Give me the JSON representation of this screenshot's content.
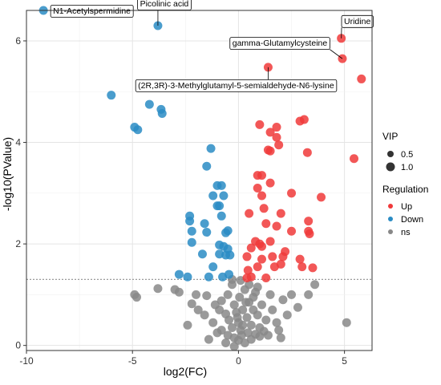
{
  "chart_data": {
    "type": "scatter",
    "xlabel": "log2(FC)",
    "ylabel": "-log10(PValue)",
    "xlim": [
      -10,
      6.3
    ],
    "ylim": [
      -0.1,
      6.6
    ],
    "xticks": [
      -10,
      -5,
      0,
      5
    ],
    "yticks": [
      0,
      2,
      4,
      6
    ],
    "grid": true,
    "threshold_y": 1.3,
    "colors": {
      "Up": "#f0393a",
      "Down": "#2a8cc4",
      "ns": "#888888"
    },
    "legend": {
      "position": "right",
      "vip_title": "VIP",
      "vip_items": [
        {
          "label": "0.5",
          "r": 4
        },
        {
          "label": "1.0",
          "r": 5.5
        }
      ],
      "regulation_title": "Regulation",
      "regulation_items": [
        "Up",
        "Down",
        "ns"
      ]
    },
    "series": [
      {
        "name": "Up",
        "points": [
          [
            5.8,
            5.25
          ],
          [
            4.85,
            6.05
          ],
          [
            4.9,
            5.65
          ],
          [
            1.4,
            5.48
          ],
          [
            5.45,
            3.68
          ],
          [
            1.0,
            4.35
          ],
          [
            1.5,
            4.2
          ],
          [
            1.8,
            4.3
          ],
          [
            1.8,
            4.1
          ],
          [
            1.4,
            3.85
          ],
          [
            1.5,
            3.83
          ],
          [
            1.9,
            3.95
          ],
          [
            2.9,
            4.42
          ],
          [
            3.1,
            4.45
          ],
          [
            3.25,
            3.8
          ],
          [
            0.9,
            3.35
          ],
          [
            1.1,
            3.35
          ],
          [
            0.9,
            3.1
          ],
          [
            1.5,
            3.2
          ],
          [
            2.5,
            3.0
          ],
          [
            1.1,
            2.95
          ],
          [
            3.9,
            2.92
          ],
          [
            1.2,
            2.7
          ],
          [
            2.0,
            2.6
          ],
          [
            0.5,
            2.6
          ],
          [
            1.3,
            2.4
          ],
          [
            1.8,
            2.35
          ],
          [
            3.3,
            2.45
          ],
          [
            3.35,
            2.2
          ],
          [
            3.3,
            2.25
          ],
          [
            2.5,
            2.25
          ],
          [
            0.8,
            2.05
          ],
          [
            1.0,
            2.0
          ],
          [
            1.5,
            2.05
          ],
          [
            1.1,
            1.95
          ],
          [
            0.6,
            1.92
          ],
          [
            1.6,
            1.75
          ],
          [
            2.2,
            1.85
          ],
          [
            2.0,
            1.6
          ],
          [
            2.1,
            1.75
          ],
          [
            2.9,
            1.7
          ],
          [
            0.4,
            1.75
          ],
          [
            1.1,
            1.7
          ],
          [
            0.9,
            1.55
          ],
          [
            1.7,
            1.55
          ],
          [
            3.0,
            1.55
          ],
          [
            3.5,
            1.53
          ],
          [
            0.45,
            1.48
          ],
          [
            0.4,
            1.33
          ],
          [
            0.6,
            1.35
          ],
          [
            1.3,
            1.33
          ]
        ]
      },
      {
        "name": "Down",
        "points": [
          [
            -9.2,
            6.6
          ],
          [
            -3.8,
            6.3
          ],
          [
            -6.0,
            4.93
          ],
          [
            -4.2,
            4.75
          ],
          [
            -3.65,
            4.65
          ],
          [
            -3.6,
            4.57
          ],
          [
            -4.9,
            4.3
          ],
          [
            -4.75,
            4.25
          ],
          [
            -1.3,
            3.88
          ],
          [
            -1.5,
            3.53
          ],
          [
            -1.0,
            3.15
          ],
          [
            -0.8,
            3.15
          ],
          [
            -1.2,
            2.95
          ],
          [
            -0.7,
            2.95
          ],
          [
            -1.0,
            2.75
          ],
          [
            -2.3,
            2.55
          ],
          [
            -2.3,
            2.45
          ],
          [
            -0.8,
            2.55
          ],
          [
            -0.9,
            2.75
          ],
          [
            -1.6,
            2.4
          ],
          [
            -2.2,
            2.25
          ],
          [
            -1.5,
            2.23
          ],
          [
            -0.6,
            2.22
          ],
          [
            -0.5,
            2.26
          ],
          [
            -2.2,
            2.03
          ],
          [
            -0.9,
            1.98
          ],
          [
            -0.7,
            1.95
          ],
          [
            -0.6,
            1.78
          ],
          [
            -1.7,
            1.8
          ],
          [
            -0.9,
            1.8
          ],
          [
            -0.4,
            1.78
          ],
          [
            -1.2,
            1.55
          ],
          [
            -0.5,
            1.9
          ],
          [
            -2.8,
            1.4
          ],
          [
            -2.4,
            1.35
          ],
          [
            -1.4,
            1.35
          ],
          [
            -0.75,
            1.35
          ],
          [
            -0.45,
            1.4
          ]
        ]
      },
      {
        "name": "ns",
        "points": [
          [
            -4.9,
            1.0
          ],
          [
            -4.8,
            0.95
          ],
          [
            -3.8,
            1.12
          ],
          [
            -3.0,
            1.1
          ],
          [
            -2.8,
            1.05
          ],
          [
            -2.0,
            1.0
          ],
          [
            -2.2,
            0.82
          ],
          [
            -1.5,
            0.98
          ],
          [
            -1.1,
            0.8
          ],
          [
            -0.9,
            0.7
          ],
          [
            -0.8,
            0.88
          ],
          [
            -0.6,
            0.62
          ],
          [
            -0.5,
            1.0
          ],
          [
            -0.45,
            0.5
          ],
          [
            -0.3,
            1.2
          ],
          [
            -0.2,
            0.8
          ],
          [
            -0.1,
            0.65
          ],
          [
            0.0,
            0.45
          ],
          [
            0.05,
            0.95
          ],
          [
            0.1,
            0.3
          ],
          [
            0.2,
            0.7
          ],
          [
            0.3,
            1.1
          ],
          [
            0.4,
            0.55
          ],
          [
            0.5,
            0.85
          ],
          [
            0.6,
            0.4
          ],
          [
            0.7,
            0.7
          ],
          [
            0.8,
            1.05
          ],
          [
            0.9,
            0.6
          ],
          [
            1.0,
            0.35
          ],
          [
            1.1,
            0.8
          ],
          [
            1.3,
            0.5
          ],
          [
            1.5,
            1.0
          ],
          [
            1.6,
            0.7
          ],
          [
            1.8,
            0.45
          ],
          [
            2.1,
            0.9
          ],
          [
            2.3,
            0.6
          ],
          [
            2.5,
            1.0
          ],
          [
            2.8,
            0.75
          ],
          [
            3.3,
            1.0
          ],
          [
            3.6,
            1.2
          ],
          [
            5.1,
            0.45
          ],
          [
            -1.6,
            0.6
          ],
          [
            -1.9,
            0.7
          ],
          [
            -1.2,
            0.45
          ],
          [
            -0.8,
            0.3
          ],
          [
            -0.5,
            0.2
          ],
          [
            -0.3,
            0.35
          ],
          [
            -0.2,
            0.15
          ],
          [
            0.0,
            0.1
          ],
          [
            0.15,
            0.2
          ],
          [
            0.3,
            0.05
          ],
          [
            0.45,
            0.25
          ],
          [
            0.6,
            0.12
          ],
          [
            0.8,
            0.22
          ],
          [
            1.0,
            0.18
          ],
          [
            1.2,
            0.28
          ],
          [
            -0.6,
            0.05
          ],
          [
            -0.2,
            -0.02
          ],
          [
            0.2,
            0.4
          ],
          [
            -1.0,
            0.25
          ],
          [
            1.4,
            0.2
          ],
          [
            0.5,
            1.2
          ],
          [
            0.9,
            1.15
          ],
          [
            -0.3,
            1.3
          ],
          [
            0.1,
            1.28
          ],
          [
            0.7,
            0.95
          ],
          [
            1.9,
            0.3
          ],
          [
            2.0,
            0.15
          ],
          [
            -2.4,
            0.4
          ],
          [
            -1.4,
            0.12
          ],
          [
            0.35,
            0.85
          ],
          [
            -0.05,
            0.55
          ]
        ]
      }
    ],
    "annotations": [
      {
        "label": "N1-Acetylspermidine",
        "x": -9.2,
        "y": 6.6,
        "dx": 12,
        "dy": 0,
        "anchor": "start"
      },
      {
        "label": "Picolinic acid",
        "x": -3.8,
        "y": 6.3,
        "dx": 8,
        "dy": -28,
        "anchor": "middle"
      },
      {
        "label": "Uridine",
        "x": 4.85,
        "y": 6.05,
        "dx": 20,
        "dy": -22,
        "anchor": "middle"
      },
      {
        "label": "gamma-Glutamylcysteine",
        "x": 4.9,
        "y": 5.65,
        "dx": -78,
        "dy": -20,
        "anchor": "middle"
      },
      {
        "label": "(2R,3R)-3-Methylglutamyl-5-semialdehyde-N6-lysine",
        "x": 1.4,
        "y": 5.48,
        "dx": -40,
        "dy": 22,
        "anchor": "middle"
      }
    ]
  }
}
